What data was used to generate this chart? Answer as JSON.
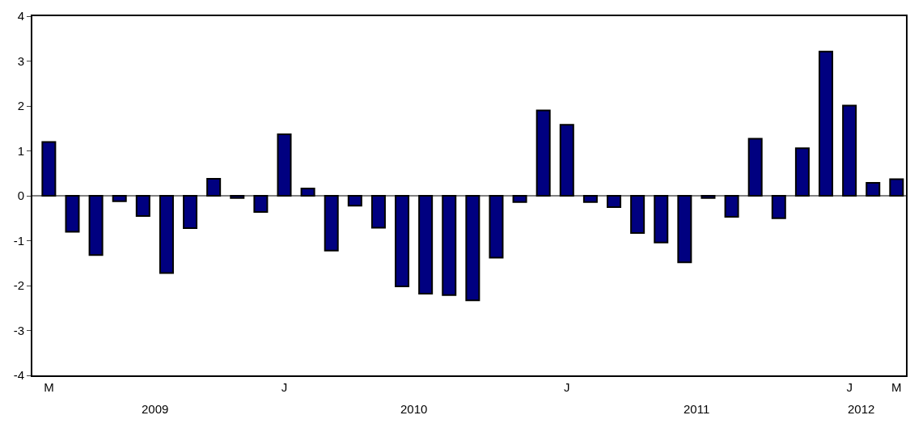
{
  "chart_data": {
    "type": "bar",
    "categories": [
      "M",
      null,
      null,
      null,
      null,
      null,
      null,
      null,
      null,
      null,
      "J",
      null,
      null,
      null,
      null,
      null,
      null,
      null,
      null,
      null,
      null,
      null,
      "J",
      null,
      null,
      null,
      null,
      null,
      null,
      null,
      null,
      null,
      null,
      null,
      "J",
      null,
      "M"
    ],
    "values": [
      1.2,
      -0.8,
      -1.32,
      -0.12,
      -0.45,
      -1.72,
      -0.72,
      0.38,
      -0.05,
      -0.36,
      1.37,
      0.16,
      -1.22,
      -0.22,
      -0.71,
      -2.02,
      -2.18,
      -2.21,
      -2.33,
      -1.38,
      -0.14,
      1.9,
      1.58,
      -0.14,
      -0.25,
      -0.83,
      -1.04,
      -1.48,
      -0.05,
      -0.47,
      1.27,
      -0.5,
      1.06,
      3.21,
      2.01,
      0.29,
      0.37
    ],
    "color": "#000080",
    "ylim": [
      -4,
      4
    ],
    "yticks": [
      -4,
      -3,
      -2,
      -1,
      0,
      1,
      2,
      3,
      4
    ],
    "annotations": [
      "2009",
      "2010",
      "2011",
      "2012"
    ],
    "ref_lines": [
      {
        "axis": "y",
        "value": 0,
        "color": "#000000"
      }
    ],
    "legend": false
  }
}
